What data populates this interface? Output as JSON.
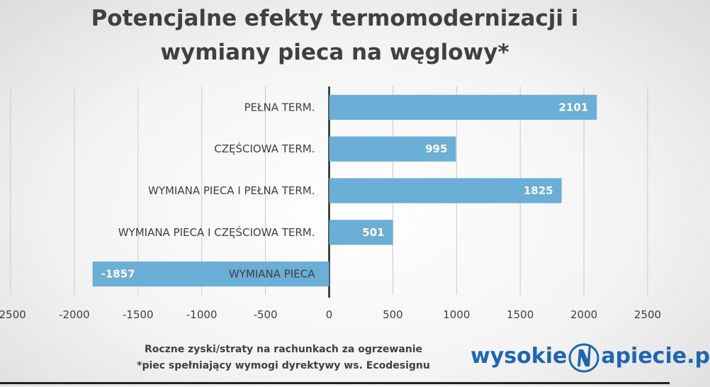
{
  "chart_data": {
    "type": "bar",
    "orientation": "horizontal",
    "title_lines": [
      "Potencjalne efekty termomodernizacji i",
      "wymiany pieca na węglowy*"
    ],
    "categories": [
      "PEŁNA TERM.",
      "CZĘŚCIOWA TERM.",
      "WYMIANA PIECA I PEŁNA TERM.",
      "WYMIANA PIECA I CZĘŚCIOWA TERM.",
      "WYMIANA PIECA"
    ],
    "values": [
      2101,
      995,
      1825,
      501,
      -1857
    ],
    "xlim": [
      -2500,
      2500
    ],
    "xticks": [
      -2500,
      -2000,
      -1500,
      -1000,
      -500,
      0,
      500,
      1000,
      1500,
      2000,
      2500
    ],
    "grid": true,
    "bar_color": "#6baed6",
    "legend": "none"
  },
  "footnote": {
    "line1": "Roczne zyski/straty na rachunkach za ogrzewanie",
    "line2": "*piec spełniający wymogi dyrektywy ws. Ecodesignu"
  },
  "logo": {
    "left": "wysokie",
    "right": "apiecie.p",
    "color": "#1f66b1"
  }
}
